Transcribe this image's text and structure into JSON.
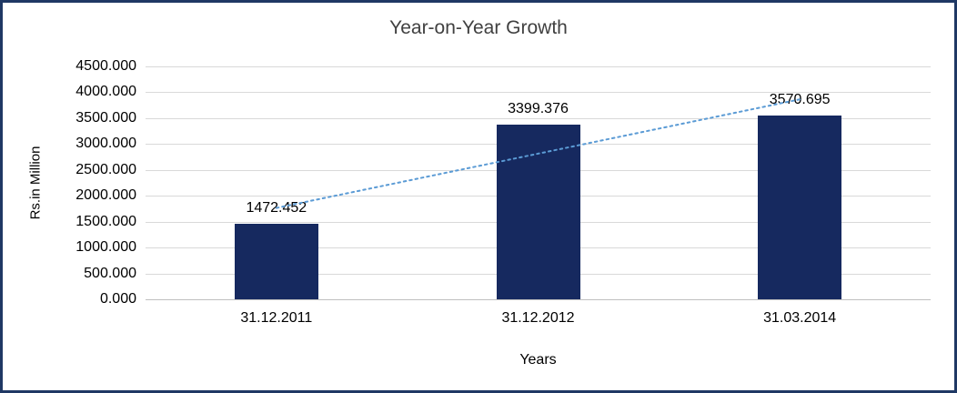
{
  "chart_data": {
    "type": "bar",
    "title": "Year-on-Year Growth",
    "xlabel": "Years",
    "ylabel": "Rs.in Million",
    "categories": [
      "31.12.2011",
      "31.12.2012",
      "31.03.2014"
    ],
    "values": [
      1472.452,
      3399.376,
      3570.695
    ],
    "data_labels": [
      "1472.452",
      "3399.376",
      "3570.695"
    ],
    "ylim": [
      0,
      4500
    ],
    "ytick_labels": [
      "0.000",
      "500.000",
      "1000.000",
      "1500.000",
      "2000.000",
      "2500.000",
      "3000.000",
      "3500.000",
      "4000.000",
      "4500.000"
    ],
    "grid": "horizontal",
    "legend": "none",
    "trendline": {
      "type": "linear",
      "style": "dotted",
      "color": "#5B9BD5"
    },
    "colors": {
      "bar": "#16295F",
      "gridline": "#D9D9D9",
      "axis_line": "#BFBFBF",
      "border": "#1F3864",
      "title_text": "#404040",
      "label_text": "#000000",
      "background": "#FFFFFF"
    }
  }
}
